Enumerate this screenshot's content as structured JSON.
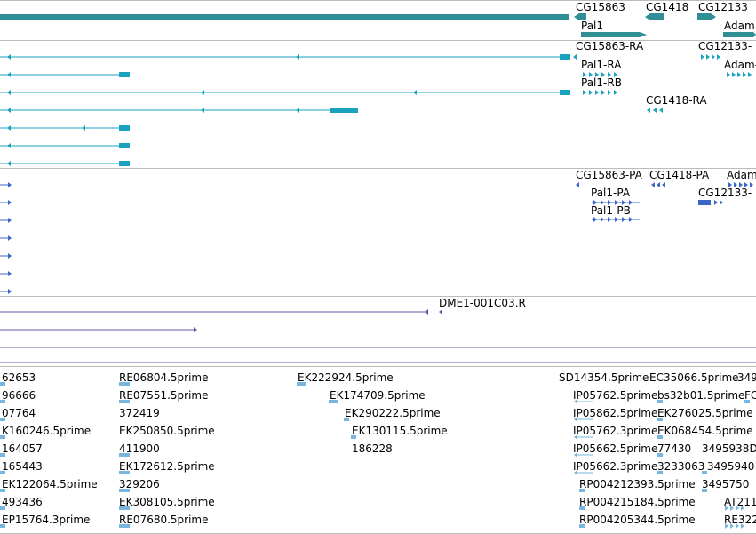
{
  "colors": {
    "genes": "#2f8f95",
    "transcripts": "#1ba2c0",
    "proteins": "#3a67c8",
    "clone": "#6b52a6",
    "est": "#78b6dd",
    "separator": "#bcbcbc"
  },
  "icons": {
    "strand_minus": "arrow-left-icon",
    "strand_plus": "arrow-right-icon"
  },
  "tracks": {
    "genes": {
      "labels": [
        "CG15863",
        "CG1418",
        "CG12133",
        "Pal1",
        "Adam"
      ]
    },
    "transcripts": {
      "labels": [
        "CG15863-RA",
        "CG12133-",
        "Pal1-RA",
        "Adam-",
        "Pal1-RB",
        "CG1418-RA"
      ]
    },
    "proteins": {
      "labels": [
        "CG15863-PA",
        "CG1418-PA",
        "Adam",
        "Pal1-PA",
        "CG12133-",
        "Pal1-PB"
      ]
    },
    "clones": {
      "labels": [
        "DME1-001C03.R"
      ]
    },
    "ests": {
      "columns": [
        [
          "62653",
          "96666",
          "07764",
          "K160246.5prime",
          "164057",
          "165443",
          "EK122064.5prime",
          "493436",
          "EP15764.3prime"
        ],
        [
          "RE06804.5prime",
          "RE07551.5prime",
          "372419",
          "EK250850.5prime",
          "411900",
          "EK172612.5prime",
          "329206",
          "EK308105.5prime",
          "RE07680.5prime"
        ],
        [
          "EK222924.5prime",
          "EK174709.5prime",
          "EK290222.5prime",
          "EK130115.5prime",
          "186228"
        ],
        [
          "SD14354.5prime",
          "IP05762.5prime",
          "IP05862.5prime",
          "IP05762.3prime",
          "IP05662.5prime",
          "IP05662.3prime",
          "RP004212393.5prime",
          "RP004215184.5prime",
          "RP004205344.5prime"
        ],
        [
          "EC35066.5prime",
          "bs32b01.5prime",
          "EK276025.5prime",
          "EK068454.5prime",
          "77430",
          "3233063",
          "3495750",
          "AT211",
          "RE322"
        ],
        [
          "349",
          "FC",
          "3495938D",
          "3495940"
        ]
      ]
    }
  }
}
